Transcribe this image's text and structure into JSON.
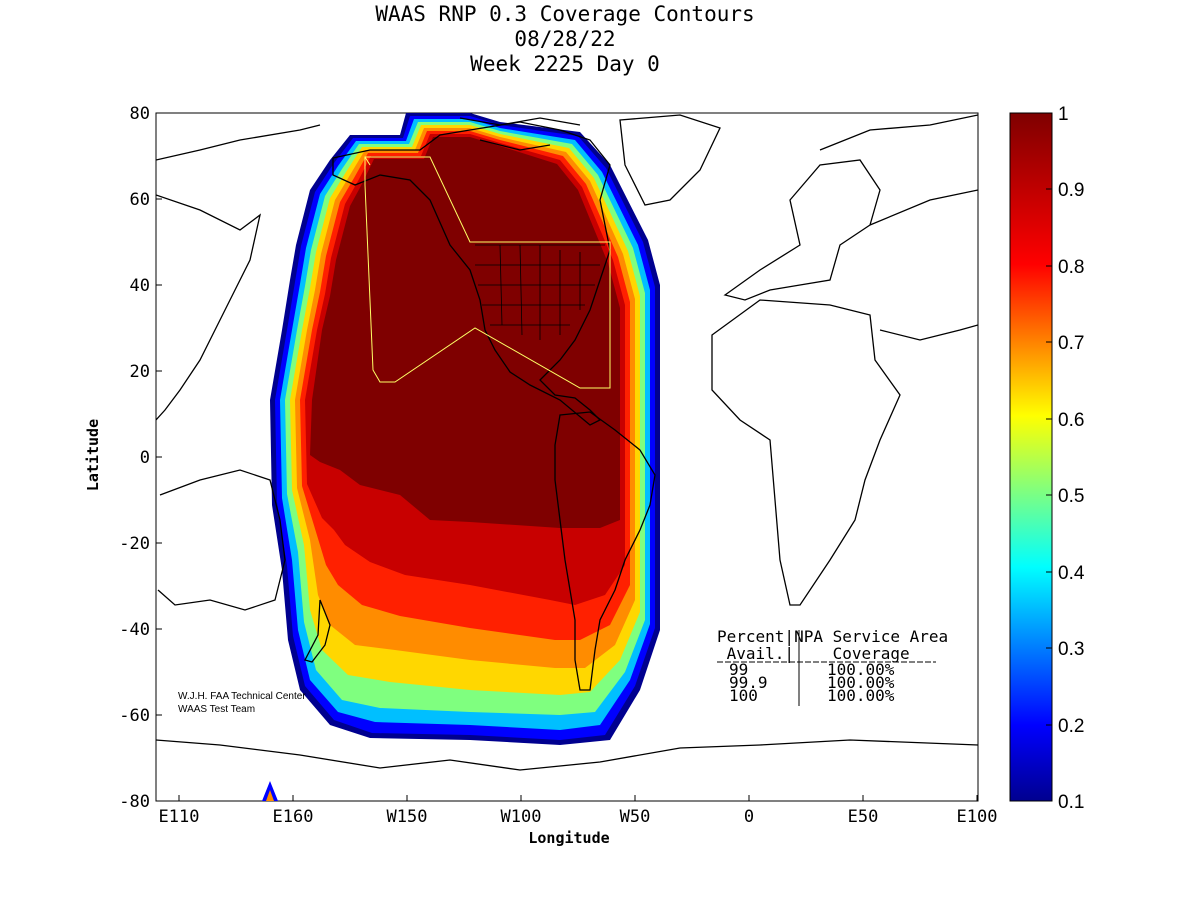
{
  "title": {
    "line1": "WAAS RNP 0.3 Coverage Contours",
    "line2": "08/28/22",
    "line3": "Week 2225 Day 0"
  },
  "axes": {
    "xlabel": "Longitude",
    "ylabel": "Latitude",
    "x_ticks": [
      "E110",
      "E160",
      "W150",
      "W100",
      "W50",
      "0",
      "E50",
      "E100"
    ],
    "y_ticks": [
      "80",
      "60",
      "40",
      "20",
      "0",
      "-20",
      "-40",
      "-60",
      "-80"
    ]
  },
  "colorbar": {
    "ticks": [
      "1",
      "0.9",
      "0.8",
      "0.7",
      "0.6",
      "0.5",
      "0.4",
      "0.3",
      "0.2",
      "0.1"
    ],
    "range": [
      0.1,
      1
    ],
    "colormap": "jet"
  },
  "table": {
    "header1": "Percent|NPA Service Area",
    "header2": " Avail.|    Coverage",
    "rows": [
      {
        "avail": "99",
        "coverage": "100.00%"
      },
      {
        "avail": "99.9",
        "coverage": "100.00%"
      },
      {
        "avail": "100",
        "coverage": "100.00%"
      }
    ]
  },
  "credit": {
    "line1": "W.J.H. FAA Technical Center",
    "line2": "WAAS Test Team"
  },
  "colors": {
    "dark_red": "#7f0000",
    "red": "#ff0000",
    "orange": "#ff8c00",
    "yellow": "#ffff00",
    "cyan": "#00ffff",
    "blue": "#0000ff",
    "navy": "#00008f",
    "service_area_outline": "#ffff66"
  }
}
